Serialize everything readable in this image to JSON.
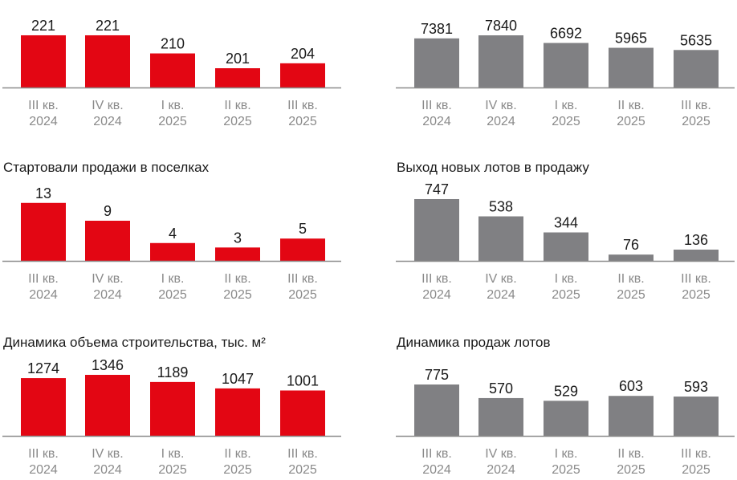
{
  "colors": {
    "red": "#e30613",
    "gray": "#808083",
    "axis": "#8c8c8c"
  },
  "chart_data": [
    {
      "type": "bar",
      "title": "",
      "color": "red",
      "categories": [
        [
          "III кв.",
          "2024"
        ],
        [
          "IV кв.",
          "2024"
        ],
        [
          "I кв.",
          "2025"
        ],
        [
          "II кв.",
          "2025"
        ],
        [
          "III кв.",
          "2025"
        ]
      ],
      "values": [
        221,
        221,
        210,
        201,
        204
      ],
      "ylim": [
        189.3,
        228.3
      ]
    },
    {
      "type": "bar",
      "title": "",
      "color": "gray",
      "categories": [
        [
          "III кв.",
          "2024"
        ],
        [
          "IV кв.",
          "2024"
        ],
        [
          "I кв.",
          "2025"
        ],
        [
          "II кв.",
          "2025"
        ],
        [
          "III кв.",
          "2025"
        ]
      ],
      "values": [
        7381,
        7840,
        6692,
        5965,
        5635
      ],
      "ylim": [
        0,
        9650
      ]
    },
    {
      "type": "bar",
      "title": "Стартовали продажи в поселках",
      "color": "red",
      "categories": [
        [
          "III кв.",
          "2024"
        ],
        [
          "IV кв.",
          "2024"
        ],
        [
          "I кв.",
          "2025"
        ],
        [
          "II кв.",
          "2025"
        ],
        [
          "III кв.",
          "2025"
        ]
      ],
      "values": [
        13,
        9,
        4,
        3,
        5
      ],
      "ylim": [
        0,
        14.4
      ]
    },
    {
      "type": "bar",
      "title": "Выход новых лотов в продажу",
      "color": "gray",
      "categories": [
        [
          "III кв.",
          "2024"
        ],
        [
          "IV кв.",
          "2024"
        ],
        [
          "I кв.",
          "2025"
        ],
        [
          "II кв.",
          "2025"
        ],
        [
          "III кв.",
          "2025"
        ]
      ],
      "values": [
        747,
        538,
        344,
        76,
        136
      ],
      "ylim": [
        0,
        776
      ]
    },
    {
      "type": "bar",
      "title": "Динамика объема строительства, тыс. м²",
      "color": "red",
      "categories": [
        [
          "III кв.",
          "2024"
        ],
        [
          "IV кв.",
          "2024"
        ],
        [
          "I кв.",
          "2025"
        ],
        [
          "II кв.",
          "2025"
        ],
        [
          "III кв.",
          "2025"
        ]
      ],
      "values": [
        1274,
        1346,
        1189,
        1047,
        1001
      ],
      "ylim": [
        0,
        1417
      ]
    },
    {
      "type": "bar",
      "title": "Динамика продаж лотов",
      "color": "gray",
      "categories": [
        [
          "III кв.",
          "2024"
        ],
        [
          "IV кв.",
          "2024"
        ],
        [
          "I кв.",
          "2025"
        ],
        [
          "II кв.",
          "2025"
        ],
        [
          "III кв.",
          "2025"
        ]
      ],
      "values": [
        775,
        570,
        529,
        603,
        593
      ],
      "ylim": [
        0,
        969
      ]
    }
  ]
}
